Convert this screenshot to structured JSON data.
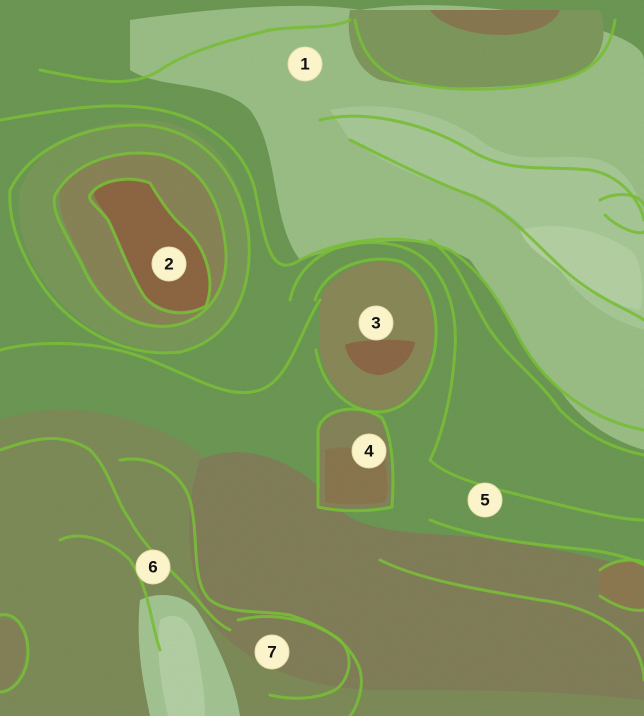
{
  "map": {
    "colors": {
      "base_green": "#6a9a52",
      "mid_green": "#7fa866",
      "light_green": "#97bd82",
      "pale_green": "#a9c99a",
      "olive": "#7a8e58",
      "brown_light": "#8f7a52",
      "brown_dark": "#8a5a3c",
      "contour": "#7cc23a"
    },
    "markers": [
      {
        "label": "1"
      },
      {
        "label": "2"
      },
      {
        "label": "3"
      },
      {
        "label": "4"
      },
      {
        "label": "5"
      },
      {
        "label": "6"
      },
      {
        "label": "7"
      }
    ]
  }
}
